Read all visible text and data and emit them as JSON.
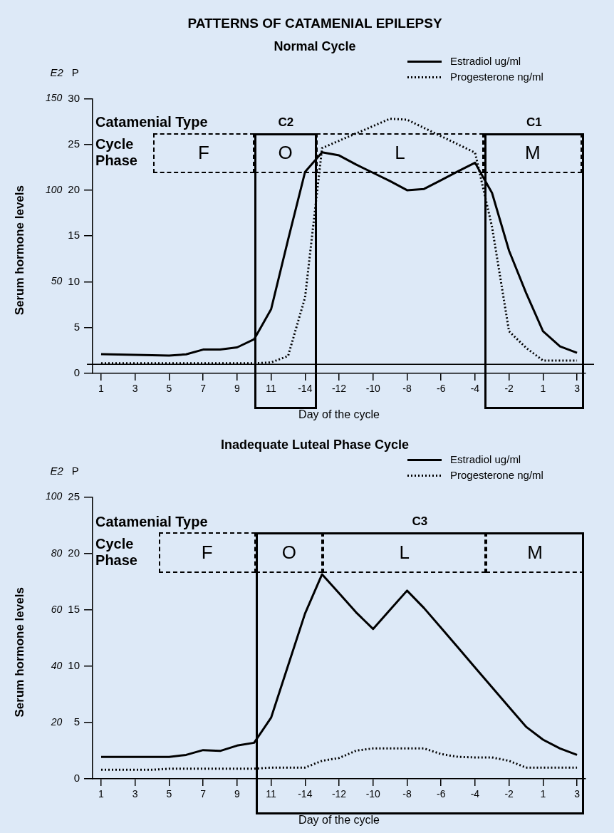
{
  "chart_data": [
    {
      "type": "line",
      "title": "PATTERNS OF CATAMENIAL EPILEPSY",
      "subtitle": "Normal Cycle",
      "xlabel": "Day of the cycle",
      "ylabel": "Serum hormone levels",
      "y2label": "P",
      "annotations": [
        "E2",
        "Catamenial Type",
        "Cycle Phase",
        "F",
        "O",
        "L",
        "M",
        "C2",
        "C1"
      ],
      "categories": [
        "1",
        null,
        "3",
        null,
        "5",
        null,
        "7",
        null,
        "9",
        null,
        "11",
        null,
        "-14",
        null,
        "-12",
        null,
        "-10",
        null,
        "-8",
        null,
        "-6",
        null,
        "-4",
        null,
        "-2",
        null,
        "1",
        null,
        "3"
      ],
      "ylim": [
        0,
        150
      ],
      "yticks": [
        50,
        100,
        150
      ],
      "y2lim": [
        0,
        30
      ],
      "y2ticks": [
        0,
        5,
        10,
        15,
        20,
        25,
        30
      ],
      "series": [
        {
          "name": "Estradiol ug/ml",
          "color": "#000000",
          "line_style": "solid",
          "values": [
            10.5,
            10.3,
            10.1,
            9.9,
            9.7,
            10.4,
            13,
            13,
            14.2,
            18.6,
            35,
            73,
            110,
            120.7,
            119,
            114,
            109.5,
            105,
            100,
            100.7,
            105.5,
            110.3,
            115,
            98.5,
            67,
            44,
            23,
            14.7,
            11.2
          ]
        },
        {
          "name": "Progesterone ng/ml",
          "color": "#000000",
          "axis": "y2",
          "line_style": "dotted",
          "values": [
            1.1,
            1.1,
            1.1,
            1.1,
            1.1,
            1.1,
            1.1,
            1.1,
            1.1,
            1.1,
            1.2,
            1.9,
            8.3,
            24.6,
            25.4,
            26.2,
            27,
            27.8,
            27.7,
            26.8,
            25.9,
            25,
            24.1,
            16,
            4.6,
            2.8,
            1.4,
            1.4,
            1.4
          ]
        }
      ],
      "ref_lines": [
        {
          "axis": "y2",
          "value": 1
        }
      ],
      "legend": "top right",
      "grid": false,
      "marker": "none"
    },
    {
      "type": "line",
      "title": "Inadequate Luteal Phase Cycle",
      "xlabel": "Day of the cycle",
      "ylabel": "Serum hormone levels",
      "y2label": "P",
      "annotations": [
        "E2",
        "Catamenial Type",
        "Cycle Phase",
        "F",
        "O",
        "L",
        "M",
        "C3"
      ],
      "categories": [
        "1",
        null,
        "3",
        null,
        "5",
        null,
        "7",
        null,
        "9",
        null,
        "11",
        null,
        "-14",
        null,
        "-12",
        null,
        "-10",
        null,
        "-8",
        null,
        "-6",
        null,
        "-4",
        null,
        "-2",
        null,
        "1",
        null,
        "3"
      ],
      "ylim": [
        0,
        100
      ],
      "yticks": [
        20,
        40,
        60,
        80,
        100
      ],
      "y2lim": [
        0,
        25
      ],
      "y2ticks": [
        0,
        5,
        10,
        15,
        20,
        25
      ],
      "series": [
        {
          "name": "Estradiol ug/ml",
          "color": "#000000",
          "line_style": "solid",
          "values": [
            7.8,
            7.8,
            7.8,
            7.8,
            7.8,
            8.5,
            10.2,
            9.9,
            11.8,
            12.8,
            21.7,
            40.2,
            58.7,
            72.6,
            65.9,
            59.1,
            53.2,
            60,
            66.8,
            60.6,
            53.6,
            46.6,
            39.5,
            32.5,
            25.5,
            18.5,
            13.9,
            10.8,
            8.5
          ]
        },
        {
          "name": "Progesterone ng/ml",
          "color": "#000000",
          "axis": "y2",
          "line_style": "dotted",
          "values": [
            0.8,
            0.8,
            0.8,
            0.8,
            0.9,
            0.9,
            0.9,
            0.9,
            0.9,
            0.9,
            1,
            1,
            1,
            1.6,
            1.85,
            2.5,
            2.7,
            2.7,
            2.7,
            2.7,
            2.2,
            1.95,
            1.9,
            1.9,
            1.6,
            1,
            1,
            1,
            1
          ]
        }
      ],
      "legend": "top right",
      "grid": false,
      "marker": "none"
    }
  ]
}
